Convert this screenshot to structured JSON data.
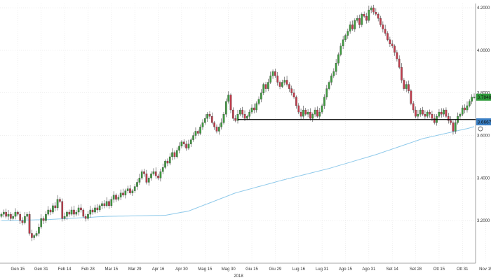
{
  "chart_data": {
    "type": "candlestick",
    "title": "",
    "xlabel": "",
    "ylabel": "",
    "year_label": "2018",
    "ylim": [
      3.0,
      4.22
    ],
    "grid": true,
    "y_ticks": [
      {
        "value": 3.2,
        "label": "3.2000"
      },
      {
        "value": 3.4,
        "label": "3.4000"
      },
      {
        "value": 3.6,
        "label": "3.6000"
      },
      {
        "value": 3.8,
        "label": "3.8000"
      },
      {
        "value": 4.0,
        "label": "4.0000"
      },
      {
        "value": 4.2,
        "label": "4.2000"
      }
    ],
    "x_ticks": [
      {
        "index": 7,
        "label": "Gen 15"
      },
      {
        "index": 17,
        "label": "Gen 31"
      },
      {
        "index": 27,
        "label": "Feb 14"
      },
      {
        "index": 37,
        "label": "Feb 28"
      },
      {
        "index": 47,
        "label": "Mar 15"
      },
      {
        "index": 57,
        "label": "Mar 29"
      },
      {
        "index": 67,
        "label": "Apr 16"
      },
      {
        "index": 77,
        "label": "Apr 30"
      },
      {
        "index": 87,
        "label": "Mag 15"
      },
      {
        "index": 97,
        "label": "Mag 30"
      },
      {
        "index": 107,
        "label": "Giu 15"
      },
      {
        "index": 117,
        "label": "Giu 29"
      },
      {
        "index": 127,
        "label": "Lug 16"
      },
      {
        "index": 137,
        "label": "Lug 31"
      },
      {
        "index": 147,
        "label": "Ago 15"
      },
      {
        "index": 157,
        "label": "Ago 31"
      },
      {
        "index": 167,
        "label": "Set 14"
      },
      {
        "index": 177,
        "label": "Set 28"
      },
      {
        "index": 187,
        "label": "Ott 15"
      },
      {
        "index": 197,
        "label": "Ott 31"
      },
      {
        "index": 207,
        "label": "Nov 15"
      }
    ],
    "candles_close": [
      3.23,
      3.24,
      3.22,
      3.23,
      3.21,
      3.22,
      3.24,
      3.23,
      3.2,
      3.19,
      3.22,
      3.23,
      3.14,
      3.12,
      3.13,
      3.14,
      3.17,
      3.21,
      3.2,
      3.23,
      3.25,
      3.24,
      3.27,
      3.26,
      3.3,
      3.29,
      3.21,
      3.22,
      3.24,
      3.23,
      3.25,
      3.23,
      3.24,
      3.26,
      3.25,
      3.22,
      3.21,
      3.23,
      3.25,
      3.24,
      3.26,
      3.25,
      3.27,
      3.28,
      3.27,
      3.29,
      3.27,
      3.3,
      3.32,
      3.3,
      3.31,
      3.33,
      3.32,
      3.34,
      3.35,
      3.33,
      3.34,
      3.36,
      3.38,
      3.4,
      3.43,
      3.42,
      3.38,
      3.4,
      3.42,
      3.43,
      3.41,
      3.4,
      3.43,
      3.45,
      3.48,
      3.47,
      3.5,
      3.52,
      3.5,
      3.53,
      3.55,
      3.57,
      3.56,
      3.54,
      3.56,
      3.58,
      3.6,
      3.62,
      3.61,
      3.64,
      3.66,
      3.68,
      3.7,
      3.69,
      3.66,
      3.64,
      3.62,
      3.64,
      3.66,
      3.7,
      3.76,
      3.79,
      3.72,
      3.68,
      3.67,
      3.7,
      3.72,
      3.7,
      3.68,
      3.69,
      3.71,
      3.73,
      3.72,
      3.75,
      3.77,
      3.8,
      3.84,
      3.82,
      3.85,
      3.88,
      3.9,
      3.88,
      3.85,
      3.83,
      3.85,
      3.86,
      3.84,
      3.82,
      3.8,
      3.78,
      3.74,
      3.71,
      3.69,
      3.72,
      3.7,
      3.71,
      3.68,
      3.7,
      3.72,
      3.69,
      3.71,
      3.74,
      3.78,
      3.82,
      3.85,
      3.88,
      3.9,
      3.94,
      3.98,
      4.02,
      4.05,
      4.07,
      4.09,
      4.12,
      4.1,
      4.14,
      4.15,
      4.12,
      4.17,
      4.16,
      4.14,
      4.19,
      4.2,
      4.18,
      4.17,
      4.15,
      4.12,
      4.1,
      4.08,
      4.05,
      4.03,
      4.02,
      3.99,
      3.96,
      3.92,
      3.86,
      3.82,
      3.84,
      3.81,
      3.75,
      3.72,
      3.69,
      3.7,
      3.72,
      3.7,
      3.69,
      3.71,
      3.7,
      3.68,
      3.66,
      3.69,
      3.71,
      3.7,
      3.72,
      3.69,
      3.67,
      3.66,
      3.62,
      3.66,
      3.69,
      3.7,
      3.73,
      3.72,
      3.74,
      3.76,
      3.78,
      3.78
    ],
    "series": [
      {
        "name": "",
        "type": "line",
        "color": "#8ec9ea",
        "from": 0,
        "to": 3.2
      },
      {
        "name": "",
        "type": "line",
        "color": "#8ec9ea",
        "from": 45,
        "to": 3.24
      },
      {
        "name": "",
        "type": "line",
        "color": "#8ec9ea",
        "from": 77,
        "to": 3.235
      },
      {
        "name": "",
        "type": "line",
        "color": "#8ec9ea",
        "from": 100,
        "to": 3.35
      }
    ],
    "ma_points": [
      {
        "i": 0,
        "v": 3.2
      },
      {
        "i": 20,
        "v": 3.205
      },
      {
        "i": 45,
        "v": 3.22
      },
      {
        "i": 70,
        "v": 3.225
      },
      {
        "i": 80,
        "v": 3.245
      },
      {
        "i": 100,
        "v": 3.33
      },
      {
        "i": 120,
        "v": 3.39
      },
      {
        "i": 140,
        "v": 3.445
      },
      {
        "i": 160,
        "v": 3.51
      },
      {
        "i": 180,
        "v": 3.585
      },
      {
        "i": 200,
        "v": 3.635
      },
      {
        "i": 209,
        "v": 3.665
      }
    ],
    "support_line": {
      "value": 3.675,
      "from_index": 101,
      "to_index": 209,
      "color": "#000000"
    },
    "last_price": {
      "value": 3.78,
      "label": "3.7848",
      "color": "#2e9a3a"
    },
    "ma_last": {
      "value": 3.664,
      "label": "3.6667",
      "color": "#3a7fc4"
    },
    "colors": {
      "up": "#3d9b3d",
      "down": "#c03a4a",
      "grid": "#e3e3e3",
      "axis": "#888888"
    }
  }
}
